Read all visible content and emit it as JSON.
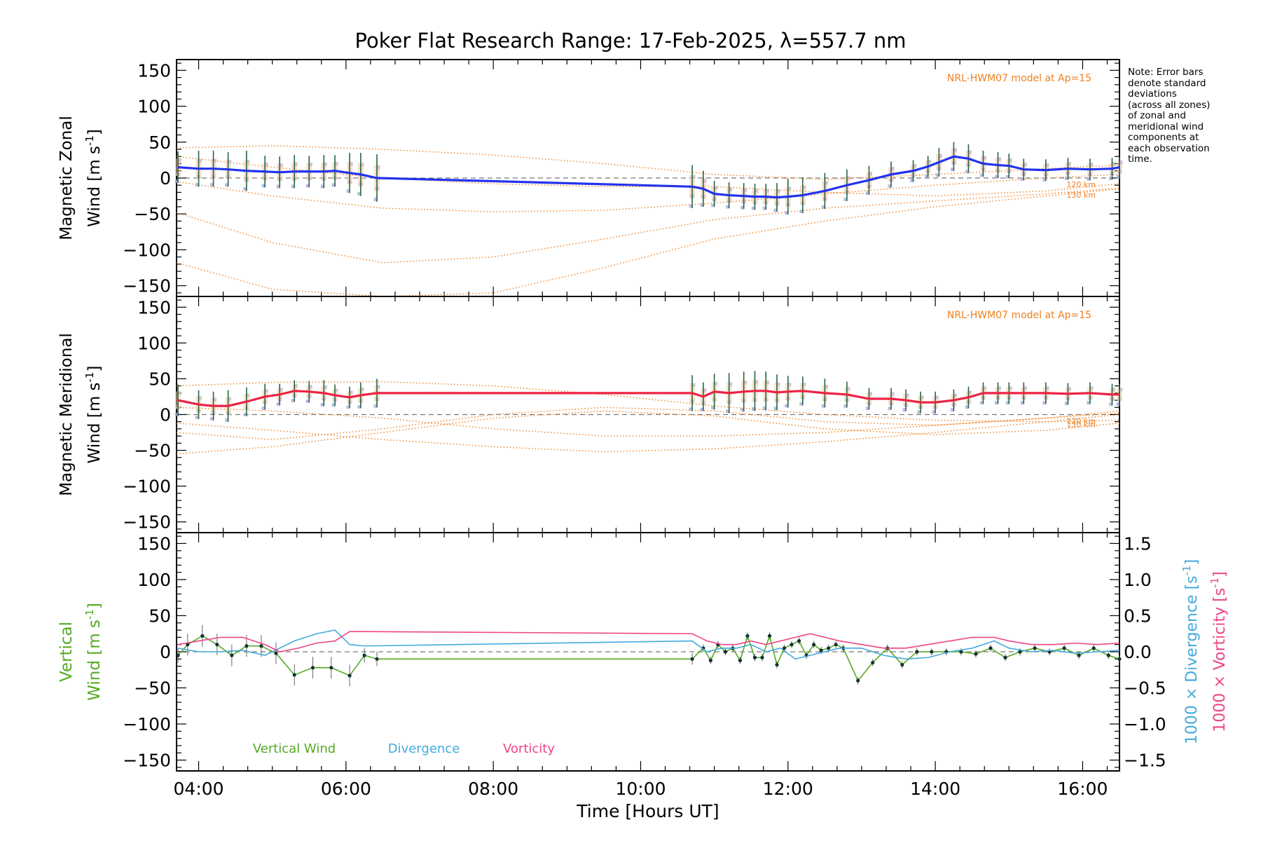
{
  "figure": {
    "title": "Poker Flat Research Range: 17-Feb-2025, λ=557.7 nm",
    "xlabel": "Time [Hours UT]",
    "note_lines": [
      "Note: Error bars",
      "denote standard",
      "deviations",
      "(across all zones)",
      "of zonal and",
      "meridional wind",
      "components at",
      "each observation",
      "time."
    ],
    "model_label": "NRL-HWM07 model at Ap=15",
    "alt_labels": [
      "120 km",
      "130 km"
    ],
    "colors": {
      "zonal": "#2233ee",
      "meridional": "#ee2244",
      "vertical": "#55aa22",
      "divergence": "#44aadd",
      "vorticity": "#ee4488",
      "model": "#f08020",
      "zones": "#aaaadd",
      "errorbar": "#226644"
    }
  },
  "chart_data": [
    {
      "type": "line",
      "title": "Poker Flat Research Range: 17-Feb-2025, λ=557.7 nm",
      "ylabel_line1": "Magnetic Zonal",
      "ylabel_line2": "Wind [m s",
      "ylabel_sup": "-1",
      "ylabel_close": "]",
      "xlim": [
        3.7,
        16.5
      ],
      "ylim": [
        -165,
        165
      ],
      "yticks": [
        -150,
        -100,
        -50,
        0,
        50,
        100,
        150
      ],
      "xticks": [
        4,
        6,
        8,
        10,
        12,
        14,
        16
      ],
      "xtick_labels": [
        "04:00",
        "06:00",
        "08:00",
        "10:00",
        "12:00",
        "14:00",
        "16:00"
      ],
      "series": [
        {
          "name": "",
          "role": "wind",
          "x": [
            3.72,
            4.0,
            4.2,
            4.4,
            4.65,
            4.9,
            5.1,
            5.3,
            5.5,
            5.7,
            5.85,
            6.05,
            6.2,
            6.42,
            10.7,
            10.85,
            11.0,
            11.2,
            11.4,
            11.55,
            11.7,
            11.85,
            12.0,
            12.2,
            12.5,
            12.8,
            13.1,
            13.4,
            13.7,
            13.9,
            14.05,
            14.25,
            14.45,
            14.65,
            14.85,
            15.0,
            15.2,
            15.5,
            15.8,
            16.1,
            16.4,
            16.5
          ],
          "y": [
            15,
            13,
            13,
            12,
            10,
            9,
            8,
            9,
            9,
            9,
            10,
            7,
            5,
            0,
            -12,
            -15,
            -22,
            -24,
            -25,
            -26,
            -26,
            -27,
            -26,
            -24,
            -18,
            -10,
            -3,
            5,
            10,
            16,
            22,
            30,
            27,
            20,
            18,
            17,
            12,
            11,
            13,
            12,
            13,
            15
          ],
          "err": [
            22,
            25,
            25,
            24,
            28,
            22,
            22,
            23,
            22,
            23,
            22,
            28,
            30,
            33,
            30,
            25,
            18,
            18,
            18,
            18,
            18,
            20,
            25,
            25,
            25,
            22,
            20,
            18,
            15,
            15,
            20,
            20,
            20,
            18,
            18,
            17,
            15,
            15,
            15,
            15,
            15,
            15
          ]
        }
      ],
      "model": {
        "label": "NRL-HWM07 model at Ap=15",
        "x": [
          3.7,
          5.0,
          6.5,
          8.0,
          9.5,
          11.0,
          12.5,
          14.0,
          15.5,
          16.5
        ],
        "curves": [
          {
            "alt": "",
            "y": [
              42,
              45,
              40,
              32,
              20,
              5,
              -2,
              5,
              13,
              18
            ]
          },
          {
            "alt": "",
            "y": [
              -48,
              -90,
              -118,
              -110,
              -85,
              -58,
              -42,
              -32,
              -22,
              -14
            ]
          },
          {
            "alt": "",
            "y": [
              -118,
              -155,
              -175,
              -160,
              -125,
              -85,
              -60,
              -40,
              -25,
              -15
            ]
          },
          {
            "alt": "120 km",
            "y": [
              -5,
              -25,
              -42,
              -47,
              -45,
              -35,
              -22,
              -10,
              0,
              5
            ]
          },
          {
            "alt": "130 km",
            "y": [
              30,
              15,
              0,
              -8,
              -12,
              -12,
              -20,
              -25,
              -18,
              -8
            ]
          }
        ]
      },
      "model_label_pos": "top-right"
    },
    {
      "type": "line",
      "ylabel_line1": "Magnetic Meridional",
      "ylabel_line2": "Wind [m s",
      "ylabel_sup": "-1",
      "ylabel_close": "]",
      "xlim": [
        3.7,
        16.5
      ],
      "ylim": [
        -165,
        165
      ],
      "yticks": [
        -150,
        -100,
        -50,
        0,
        50,
        100,
        150
      ],
      "xticks": [
        4,
        6,
        8,
        10,
        12,
        14,
        16
      ],
      "series": [
        {
          "name": "",
          "role": "wind",
          "x": [
            3.72,
            4.0,
            4.2,
            4.4,
            4.65,
            4.9,
            5.1,
            5.3,
            5.5,
            5.7,
            5.85,
            6.05,
            6.2,
            6.42,
            10.7,
            10.85,
            11.0,
            11.2,
            11.4,
            11.55,
            11.7,
            11.85,
            12.0,
            12.2,
            12.5,
            12.8,
            13.1,
            13.4,
            13.6,
            13.8,
            14.0,
            14.25,
            14.45,
            14.65,
            14.85,
            15.0,
            15.2,
            15.5,
            15.8,
            16.1,
            16.4,
            16.5
          ],
          "y": [
            20,
            14,
            12,
            12,
            18,
            25,
            28,
            33,
            32,
            30,
            27,
            24,
            27,
            30,
            30,
            25,
            32,
            30,
            32,
            33,
            33,
            31,
            32,
            33,
            30,
            28,
            22,
            22,
            20,
            17,
            17,
            20,
            24,
            30,
            30,
            30,
            30,
            30,
            29,
            30,
            28,
            28
          ],
          "err": [
            22,
            20,
            20,
            22,
            20,
            18,
            15,
            15,
            15,
            18,
            15,
            15,
            18,
            20,
            25,
            20,
            25,
            28,
            28,
            28,
            27,
            25,
            22,
            20,
            20,
            18,
            15,
            15,
            15,
            15,
            15,
            15,
            15,
            15,
            15,
            15,
            15,
            15,
            15,
            15,
            15,
            15
          ]
        }
      ],
      "model": {
        "label": "NRL-HWM07 model at Ap=15",
        "x": [
          3.7,
          5.0,
          6.5,
          8.0,
          9.5,
          11.0,
          12.5,
          14.0,
          15.5,
          16.5
        ],
        "curves": [
          {
            "alt": "",
            "y": [
              40,
              45,
              46,
              40,
              28,
              12,
              0,
              -8,
              -10,
              -8
            ]
          },
          {
            "alt": "",
            "y": [
              -55,
              -45,
              -25,
              -5,
              5,
              -2,
              -20,
              -28,
              -22,
              -12
            ]
          },
          {
            "alt": "",
            "y": [
              -12,
              -22,
              -35,
              -45,
              -52,
              -48,
              -38,
              -25,
              -10,
              0
            ]
          },
          {
            "alt": "120 km",
            "y": [
              -25,
              -35,
              -20,
              0,
              10,
              5,
              -10,
              -15,
              -5,
              5
            ]
          },
          {
            "alt": "130 km",
            "y": [
              10,
              5,
              -5,
              -20,
              -30,
              -30,
              -25,
              -15,
              -5,
              2
            ]
          }
        ]
      },
      "model_label_pos": "top-right"
    },
    {
      "type": "line",
      "ylabel_line1": "Vertical",
      "ylabel_line2": "Wind [m s",
      "ylabel_sup": "-1",
      "ylabel_close": "]",
      "y2label_div": "1000 × Divergence [s",
      "y2label_vort": "1000 × Vorticity [s",
      "y2label_sup": "-1",
      "y2label_close": "]",
      "xlim": [
        3.7,
        16.5
      ],
      "ylim": [
        -165,
        165
      ],
      "y2lim": [
        -1.65,
        1.65
      ],
      "yticks": [
        -150,
        -100,
        -50,
        0,
        50,
        100,
        150
      ],
      "y2ticks": [
        -1.5,
        -1.0,
        -0.5,
        0.0,
        0.5,
        1.0,
        1.5
      ],
      "y2tick_labels": [
        "−1.5",
        "−1.0",
        "−0.5",
        "0.0",
        "0.5",
        "1.0",
        "1.5"
      ],
      "xticks": [
        4,
        6,
        8,
        10,
        12,
        14,
        16
      ],
      "xtick_labels": [
        "04:00",
        "06:00",
        "08:00",
        "10:00",
        "12:00",
        "14:00",
        "16:00"
      ],
      "legend": [
        "Vertical Wind",
        "Divergence",
        "Vorticity"
      ],
      "legend_pos": "bottom-left",
      "series": [
        {
          "name": "Vertical Wind",
          "role": "vertical",
          "x": [
            3.72,
            3.85,
            4.05,
            4.25,
            4.45,
            4.65,
            4.85,
            5.05,
            5.3,
            5.55,
            5.8,
            6.05,
            6.25,
            6.42,
            10.7,
            10.85,
            10.95,
            11.05,
            11.15,
            11.25,
            11.35,
            11.45,
            11.55,
            11.65,
            11.75,
            11.85,
            11.95,
            12.05,
            12.15,
            12.25,
            12.35,
            12.45,
            12.55,
            12.65,
            12.75,
            12.95,
            13.15,
            13.35,
            13.55,
            13.75,
            13.95,
            14.15,
            14.35,
            14.55,
            14.75,
            14.95,
            15.15,
            15.35,
            15.55,
            15.75,
            15.95,
            16.15,
            16.35,
            16.5
          ],
          "y": [
            -5,
            10,
            22,
            10,
            -5,
            8,
            8,
            -2,
            -32,
            -22,
            -22,
            -33,
            -5,
            -10,
            -10,
            5,
            -12,
            10,
            0,
            5,
            -12,
            22,
            -8,
            -8,
            22,
            -18,
            5,
            10,
            15,
            -5,
            10,
            2,
            5,
            10,
            5,
            -40,
            -15,
            5,
            -18,
            0,
            0,
            0,
            0,
            -3,
            5,
            -8,
            0,
            5,
            0,
            5,
            -5,
            5,
            -5,
            -10
          ],
          "err": [
            10,
            15,
            15,
            15,
            15,
            15,
            15,
            15,
            15,
            15,
            15,
            15,
            10,
            10,
            8,
            5,
            5,
            5,
            5,
            5,
            5,
            5,
            5,
            5,
            5,
            5,
            5,
            5,
            5,
            5,
            5,
            5,
            5,
            5,
            5,
            5,
            5,
            5,
            5,
            5,
            5,
            5,
            5,
            5,
            5,
            5,
            5,
            5,
            5,
            5,
            5,
            5,
            5,
            5
          ]
        },
        {
          "name": "Divergence",
          "role": "divergence",
          "x": [
            3.72,
            4.0,
            4.3,
            4.6,
            4.9,
            5.1,
            5.3,
            5.6,
            5.85,
            6.05,
            6.25,
            10.7,
            10.9,
            11.1,
            11.3,
            11.5,
            11.7,
            11.9,
            12.1,
            12.3,
            12.5,
            12.7,
            13.0,
            13.3,
            13.6,
            13.9,
            14.2,
            14.5,
            14.8,
            15.0,
            15.3,
            15.6,
            15.9,
            16.2,
            16.5
          ],
          "y": [
            0.05,
            0.0,
            0.0,
            0.02,
            -0.05,
            0.05,
            0.15,
            0.25,
            0.3,
            0.1,
            0.08,
            0.15,
            0.0,
            0.05,
            0.05,
            0.1,
            0.0,
            0.05,
            -0.1,
            -0.05,
            0.0,
            0.05,
            0.05,
            -0.05,
            -0.1,
            -0.08,
            0.0,
            0.05,
            0.15,
            0.05,
            0.0,
            0.02,
            -0.02,
            0.0,
            0.02
          ],
          "err": []
        },
        {
          "name": "Vorticity",
          "role": "vorticity",
          "x": [
            3.72,
            4.0,
            4.3,
            4.6,
            4.9,
            5.1,
            5.35,
            5.6,
            5.85,
            6.05,
            6.25,
            10.7,
            10.9,
            11.1,
            11.3,
            11.5,
            11.7,
            11.9,
            12.1,
            12.3,
            12.5,
            12.7,
            13.0,
            13.3,
            13.6,
            13.9,
            14.2,
            14.5,
            14.8,
            15.0,
            15.3,
            15.6,
            15.9,
            16.2,
            16.5
          ],
          "y": [
            0.1,
            0.15,
            0.2,
            0.2,
            0.1,
            0.0,
            0.05,
            0.12,
            0.15,
            0.28,
            0.28,
            0.25,
            0.15,
            0.1,
            0.1,
            0.15,
            0.1,
            0.15,
            0.2,
            0.25,
            0.2,
            0.15,
            0.1,
            0.05,
            0.05,
            0.1,
            0.15,
            0.2,
            0.2,
            0.15,
            0.1,
            0.1,
            0.12,
            0.1,
            0.12
          ],
          "err": []
        }
      ]
    }
  ]
}
